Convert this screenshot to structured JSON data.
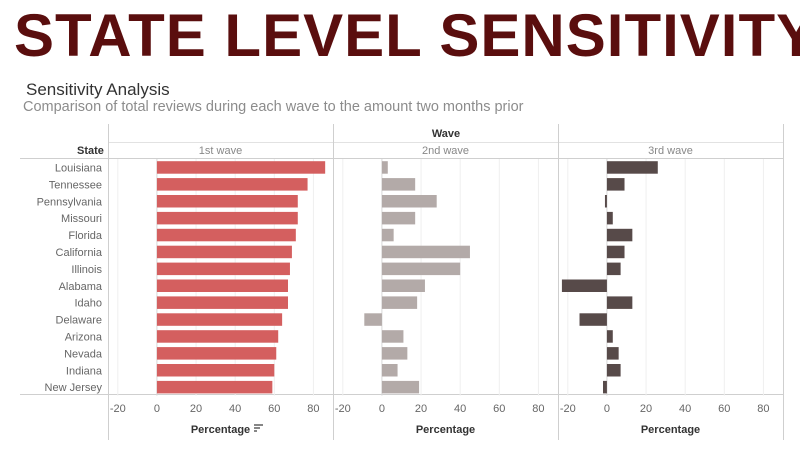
{
  "header": {
    "banner": "STATE LEVEL SENSITIVITY",
    "title": "Sensitivity Analysis",
    "subtitle": "Comparison of total reviews during each wave to the amount two months prior"
  },
  "chart_data": {
    "type": "bar",
    "orientation": "horizontal",
    "row_header": "State",
    "column_group_header": "Wave",
    "categories": [
      "Louisiana",
      "Tennessee",
      "Pennsylvania",
      "Missouri",
      "Florida",
      "California",
      "Illinois",
      "Alabama",
      "Idaho",
      "Delaware",
      "Arizona",
      "Nevada",
      "Indiana",
      "New Jersey"
    ],
    "series": [
      {
        "name": "1st wave",
        "color": "#d45f5f",
        "values": [
          86,
          77,
          72,
          72,
          71,
          69,
          68,
          67,
          67,
          64,
          62,
          61,
          60,
          59
        ]
      },
      {
        "name": "2nd wave",
        "color": "#b3aaa8",
        "values": [
          3,
          17,
          28,
          17,
          6,
          45,
          40,
          22,
          18,
          -9,
          11,
          13,
          8,
          19
        ]
      },
      {
        "name": "3rd wave",
        "color": "#574a49",
        "values": [
          26,
          9,
          -1,
          3,
          13,
          9,
          7,
          -23,
          13,
          -14,
          3,
          6,
          7,
          -2
        ]
      }
    ],
    "xlabel": "Percentage",
    "xlim": [
      -25,
      90
    ],
    "xticks": [
      -20,
      0,
      20,
      40,
      60,
      80
    ],
    "grid": true,
    "legend": "none"
  }
}
